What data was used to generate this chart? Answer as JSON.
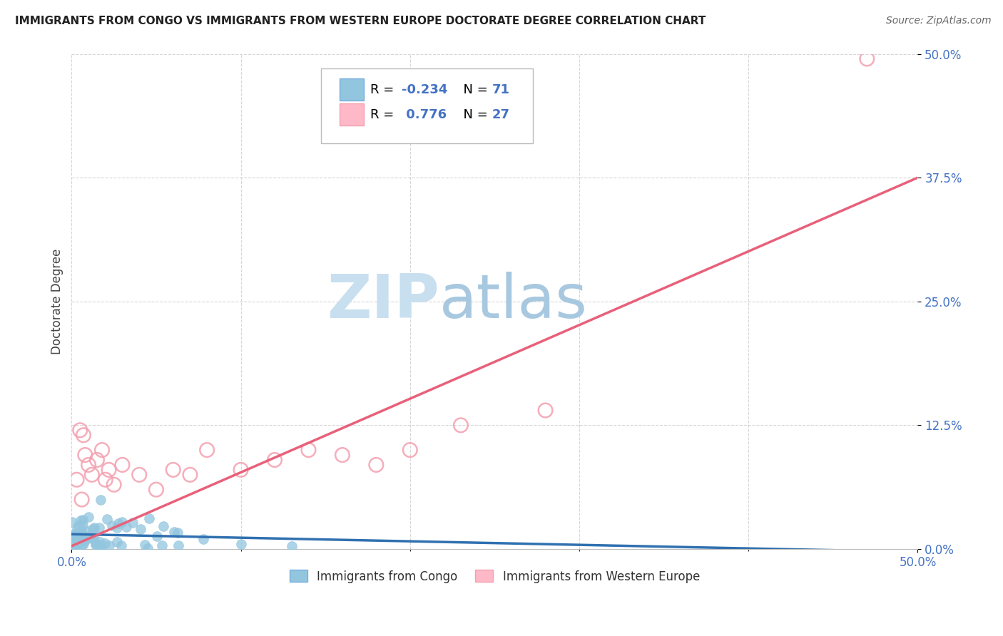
{
  "title": "IMMIGRANTS FROM CONGO VS IMMIGRANTS FROM WESTERN EUROPE DOCTORATE DEGREE CORRELATION CHART",
  "source": "Source: ZipAtlas.com",
  "ylabel": "Doctorate Degree",
  "ytick_labels": [
    "0.0%",
    "12.5%",
    "25.0%",
    "37.5%",
    "50.0%"
  ],
  "ytick_values": [
    0.0,
    0.125,
    0.25,
    0.375,
    0.5
  ],
  "xlim": [
    0.0,
    0.5
  ],
  "ylim": [
    0.0,
    0.5
  ],
  "legend_blue_label": "Immigrants from Congo",
  "legend_pink_label": "Immigrants from Western Europe",
  "R_blue": -0.234,
  "N_blue": 71,
  "R_pink": 0.776,
  "N_pink": 27,
  "blue_scatter_color": "#92C5DE",
  "pink_scatter_edge": "#F4A0B0",
  "blue_line_color": "#3070B0",
  "pink_line_color": "#E8607A",
  "watermark_zip_color": "#C8DFF0",
  "watermark_atlas_color": "#A8C8E0",
  "background_color": "#FFFFFF",
  "grid_color": "#CCCCCC",
  "tick_color": "#4472C4",
  "title_color": "#222222",
  "ylabel_color": "#444444",
  "legend_R_color": "#000000",
  "legend_val_color": "#4472C4",
  "blue_seed": 42,
  "pink_seed": 99,
  "pink_trend_y_start": 0.003,
  "pink_trend_y_end": 0.375,
  "blue_trend_y_start": 0.015,
  "blue_trend_y_end": -0.003
}
